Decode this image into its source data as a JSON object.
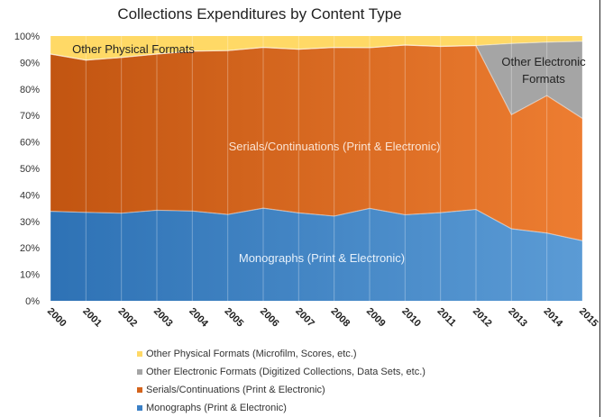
{
  "chart_data": {
    "type": "area",
    "stacked": true,
    "title": "Collections Expenditures by Content Type",
    "x": [
      2000,
      2001,
      2002,
      2003,
      2004,
      2005,
      2006,
      2007,
      2008,
      2009,
      2010,
      2011,
      2012,
      2013,
      2014,
      2015
    ],
    "x_tick_labels": [
      "2000",
      "2001",
      "2002",
      "2003",
      "2004",
      "2005",
      "2006",
      "2007",
      "2008",
      "2009",
      "2010",
      "2011",
      "2012",
      "2013",
      "2014",
      "2015"
    ],
    "y_tick_labels": [
      "0%",
      "10%",
      "20%",
      "30%",
      "40%",
      "50%",
      "60%",
      "70%",
      "80%",
      "90%",
      "100%"
    ],
    "ylim": [
      0,
      100
    ],
    "grid": false,
    "legend_position": "bottom",
    "series": [
      {
        "name": "Monographs (Print & Electronic)",
        "label": "Monographs (Print & Electronic)",
        "color": "#4a8cd0",
        "values": [
          33.8,
          33.4,
          33.1,
          34.2,
          33.9,
          32.6,
          35.0,
          33.2,
          32.0,
          34.9,
          32.5,
          33.3,
          34.5,
          27.2,
          25.6,
          22.7
        ]
      },
      {
        "name": "Serials/Continuations (Print & Electronic)",
        "label": "Serials/Continuations (Print & Electronic)",
        "color": "#e06f25",
        "values": [
          59.4,
          57.5,
          58.8,
          59.0,
          60.4,
          61.9,
          60.7,
          61.8,
          63.7,
          60.7,
          64.1,
          62.8,
          61.9,
          43.1,
          51.9,
          46.2
        ]
      },
      {
        "name": "Other Electronic Formats (Digitized Collections, Data Sets, etc.)",
        "label": "Other Electronic Formats",
        "color": "#a5a5a5",
        "values": [
          0,
          0,
          0,
          0,
          0,
          0,
          0,
          0,
          0,
          0,
          0,
          0,
          0,
          26.9,
          20.2,
          29.1
        ]
      },
      {
        "name": "Other Physical Formats (Microfilm, Scores, etc.)",
        "label": "Other Physical Formats",
        "color": "#ffd966",
        "values": [
          6.8,
          9.1,
          8.1,
          6.8,
          5.7,
          5.5,
          4.3,
          5.0,
          4.3,
          4.4,
          3.4,
          3.9,
          3.6,
          2.8,
          2.3,
          2.0
        ]
      }
    ]
  }
}
